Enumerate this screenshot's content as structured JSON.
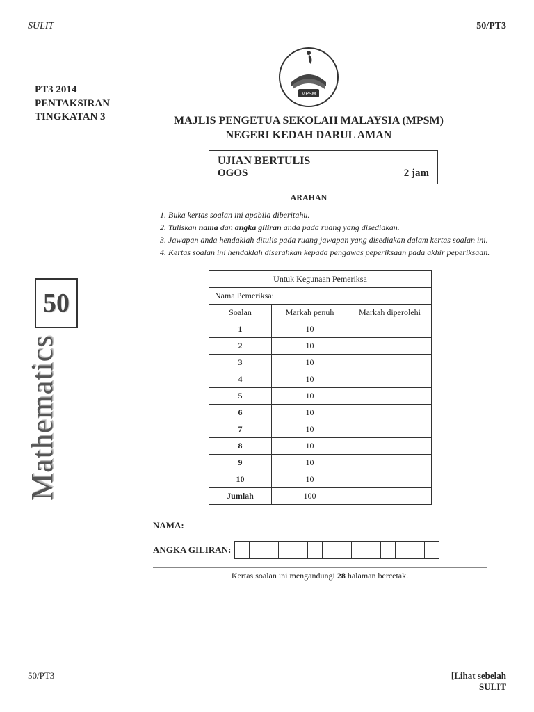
{
  "header": {
    "top_left": "SULIT",
    "top_right": "50/PT3"
  },
  "side": {
    "line1": "PT3 2014",
    "line2": "PENTAKSIRAN",
    "line3": "TINGKATAN 3",
    "badge": "50",
    "subject": "Mathematics"
  },
  "logo_label": "MPSM",
  "title": {
    "line1": "MAJLIS PENGETUA SEKOLAH MALAYSIA (MPSM)",
    "line2": "NEGERI KEDAH DARUL AMAN"
  },
  "exam_box": {
    "line1": "UJIAN BERTULIS",
    "month": "OGOS",
    "duration": "2 jam"
  },
  "instructions": {
    "heading": "ARAHAN",
    "items": [
      "Buka kertas soalan ini apabila diberitahu.",
      "Tuliskan nama dan angka giliran anda pada ruang yang disediakan.",
      "Jawapan anda hendaklah ditulis pada ruang jawapan yang disediakan dalam kertas soalan ini.",
      "Kertas soalan ini hendaklah diserahkan kepada pengawas peperiksaan pada akhir peperiksaan."
    ]
  },
  "table": {
    "caption": "Untuk Kegunaan Pemeriksa",
    "examiner_label": "Nama Pemeriksa:",
    "col1": "Soalan",
    "col2": "Markah penuh",
    "col3": "Markah diperolehi",
    "rows": [
      {
        "q": "1",
        "full": "10"
      },
      {
        "q": "2",
        "full": "10"
      },
      {
        "q": "3",
        "full": "10"
      },
      {
        "q": "4",
        "full": "10"
      },
      {
        "q": "5",
        "full": "10"
      },
      {
        "q": "6",
        "full": "10"
      },
      {
        "q": "7",
        "full": "10"
      },
      {
        "q": "8",
        "full": "10"
      },
      {
        "q": "9",
        "full": "10"
      },
      {
        "q": "10",
        "full": "10"
      }
    ],
    "total_label": "Jumlah",
    "total_value": "100"
  },
  "fields": {
    "name_label": "NAMA:",
    "giliran_label": "ANGKA GILIRAN:",
    "box_count": 14
  },
  "footer": {
    "note_pre": "Kertas soalan ini mengandungi ",
    "note_bold": "28",
    "note_post": " halaman bercetak.",
    "bottom_left": "50/PT3",
    "bottom_right1": "[Lihat sebelah",
    "bottom_right2": "SULIT"
  },
  "colors": {
    "text": "#252525",
    "border": "#333333",
    "bg": "#ffffff"
  }
}
